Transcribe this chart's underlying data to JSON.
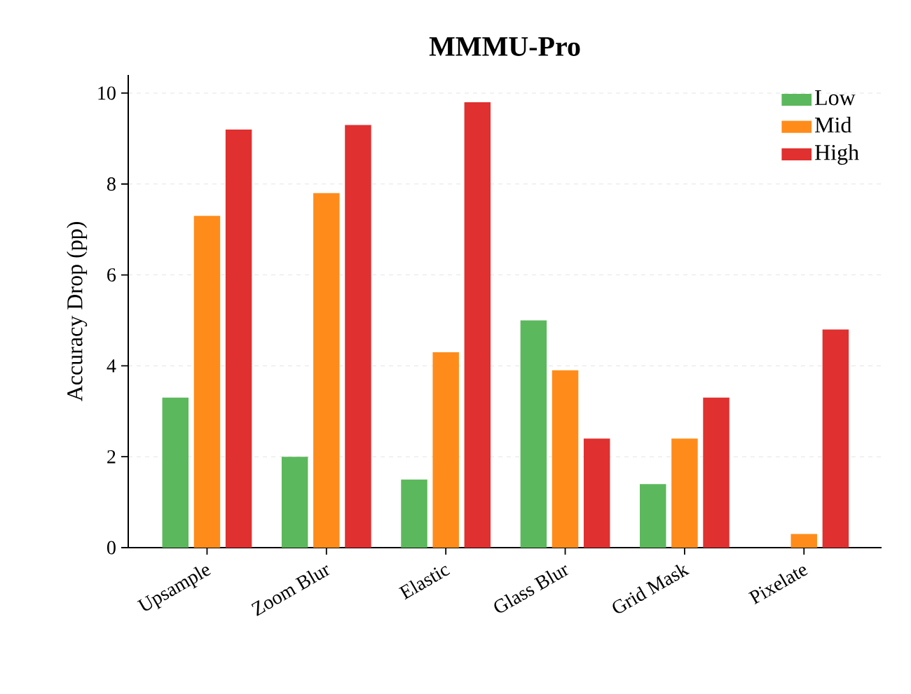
{
  "chart_data": {
    "type": "bar",
    "title": "MMMU-Pro",
    "ylabel": "Accuracy Drop (pp)",
    "categories": [
      "Upsample",
      "Zoom Blur",
      "Elastic",
      "Glass Blur",
      "Grid Mask",
      "Pixelate"
    ],
    "series": [
      {
        "name": "Low",
        "color": "#5cb85c",
        "values": [
          3.3,
          2.0,
          1.5,
          5.0,
          1.4,
          0
        ]
      },
      {
        "name": "Mid",
        "color": "#ff8c1a",
        "values": [
          7.3,
          7.8,
          4.3,
          3.9,
          2.4,
          0.3
        ]
      },
      {
        "name": "High",
        "color": "#e03030",
        "values": [
          9.2,
          9.3,
          9.8,
          2.4,
          3.3,
          4.8
        ]
      }
    ],
    "ylim": [
      0,
      10.4
    ],
    "yticks": [
      0,
      2,
      4,
      6,
      8,
      10
    ],
    "grid": "y",
    "legend": "top right"
  }
}
